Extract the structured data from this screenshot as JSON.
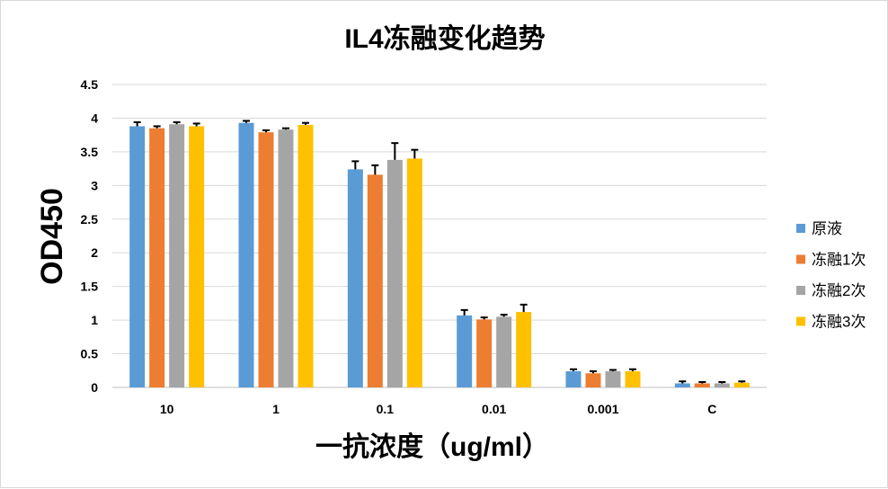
{
  "chart_data": {
    "type": "bar",
    "title": "IL4冻融变化趋势",
    "xlabel": "一抗浓度（ug/ml）",
    "ylabel": "OD450",
    "ylim": [
      0,
      4.5
    ],
    "yticks": [
      "0",
      "0.5",
      "1",
      "1.5",
      "2",
      "2.5",
      "3",
      "3.5",
      "4",
      "4.5"
    ],
    "grid": true,
    "legend_position": "right",
    "categories": [
      "10",
      "1",
      "0.1",
      "0.01",
      "0.001",
      "C"
    ],
    "series": [
      {
        "name": "原液",
        "color": "#5b9bd5",
        "values": [
          3.88,
          3.93,
          3.24,
          1.07,
          0.24,
          0.06
        ],
        "errors": [
          0.06,
          0.03,
          0.12,
          0.08,
          0.03,
          0.03
        ]
      },
      {
        "name": "冻融1次",
        "color": "#ed7d31",
        "values": [
          3.85,
          3.79,
          3.16,
          1.01,
          0.21,
          0.06
        ],
        "errors": [
          0.03,
          0.03,
          0.14,
          0.03,
          0.03,
          0.02
        ]
      },
      {
        "name": "冻融2次",
        "color": "#a5a5a5",
        "values": [
          3.91,
          3.83,
          3.38,
          1.05,
          0.24,
          0.06
        ],
        "errors": [
          0.03,
          0.02,
          0.25,
          0.03,
          0.02,
          0.02
        ]
      },
      {
        "name": "冻融3次",
        "color": "#ffc000",
        "values": [
          3.88,
          3.9,
          3.4,
          1.12,
          0.24,
          0.07
        ],
        "errors": [
          0.04,
          0.03,
          0.13,
          0.11,
          0.03,
          0.02
        ]
      }
    ],
    "gridline_color": "#d9d9d9",
    "axis_color": "#bfbfbf",
    "errorbar_color": "#000000"
  }
}
